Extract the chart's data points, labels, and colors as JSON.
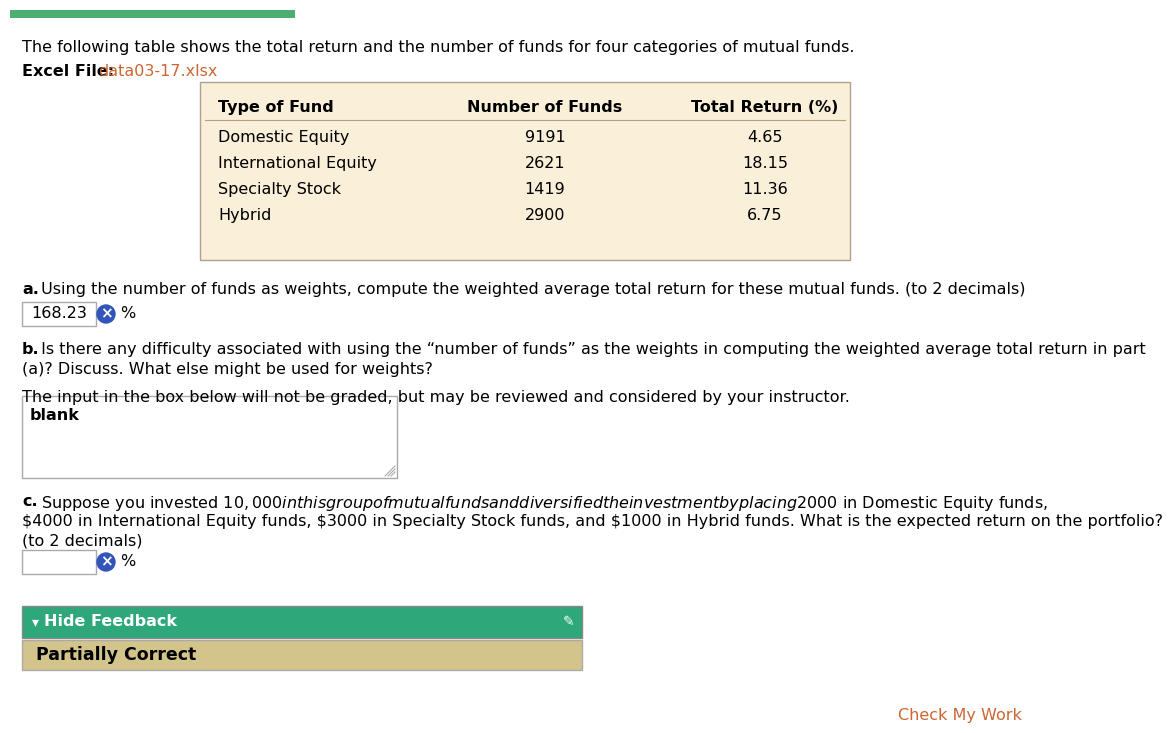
{
  "title_text": "The following table shows the total return and the number of funds for four categories of mutual funds.",
  "excel_label": "Excel File:",
  "excel_link": "data03-17.xlsx",
  "table_headers": [
    "Type of Fund",
    "Number of Funds",
    "Total Return (%)"
  ],
  "table_rows": [
    [
      "Domestic Equity",
      "9191",
      "4.65"
    ],
    [
      "International Equity",
      "2621",
      "18.15"
    ],
    [
      "Specialty Stock",
      "1419",
      "11.36"
    ],
    [
      "Hybrid",
      "2900",
      "6.75"
    ]
  ],
  "table_bg": "#faefd8",
  "part_a_bold": "a.",
  "part_a_text": " Using the number of funds as weights, compute the weighted average total return for these mutual funds. (to 2 decimals)",
  "answer_a": "168.23",
  "part_b_bold": "b.",
  "part_b_line1": " Is there any difficulty associated with using the “number of funds” as the weights in computing the weighted average total return in part",
  "part_b_line2": "(a)? Discuss. What else might be used for weights?",
  "part_b_subtext": "The input in the box below will not be graded, but may be reviewed and considered by your instructor.",
  "blank_text": "blank",
  "part_c_bold": "c.",
  "part_c_line1": " Suppose you invested $10,000 in this group of mutual funds and diversified the investment by placing $2000 in Domestic Equity funds,",
  "part_c_line2": "$4000 in International Equity funds, $3000 in Specialty Stock funds, and $1000 in Hybrid funds. What is the expected return on the portfolio?",
  "part_c_line3": "(to 2 decimals)",
  "hide_feedback_text": "Hide Feedback",
  "partially_correct_text": "Partially Correct",
  "feedback_header_bg": "#2ea87a",
  "feedback_body_bg": "#d2c48a",
  "bg_color": "#ffffff",
  "text_color": "#000000",
  "link_color": "#cc6633",
  "border_color": "#c8c8c8",
  "btn_color": "#3355bb",
  "body_font_size": 11.5,
  "table_font_size": 11.5,
  "green_bar_color": "#4caf72",
  "green_bar_width": 285
}
